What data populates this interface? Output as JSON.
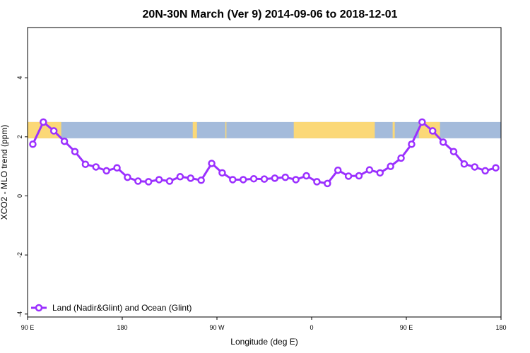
{
  "chart_data": {
    "type": "line",
    "title": "20N-30N March (Ver 9)   2014-09-06 to 2018-12-01",
    "xlabel": "Longitude (deg E)",
    "ylabel": "XCO2 - MLO trend (ppm)",
    "xlim": [
      90,
      540
    ],
    "ylim": [
      -4.1,
      5.7
    ],
    "x_ticks": [
      {
        "value": 90,
        "label": "90 E"
      },
      {
        "value": 180,
        "label": "180"
      },
      {
        "value": 270,
        "label": "90 W"
      },
      {
        "value": 360,
        "label": "0"
      },
      {
        "value": 450,
        "label": "90 E"
      },
      {
        "value": 540,
        "label": "180"
      }
    ],
    "y_ticks": [
      {
        "value": -4,
        "label": "-4"
      },
      {
        "value": -2,
        "label": "-2"
      },
      {
        "value": 0,
        "label": "0"
      },
      {
        "value": 2,
        "label": "2"
      },
      {
        "value": 4,
        "label": "4"
      }
    ],
    "map_strip": {
      "y_range": [
        1.95,
        2.5
      ],
      "ocean_color": "#a4bbdb",
      "land_color": "#fbd877",
      "land_segments": [
        [
          90,
          122
        ],
        [
          247,
          251
        ],
        [
          278,
          279
        ],
        [
          343,
          420
        ],
        [
          437,
          439
        ],
        [
          462,
          482
        ]
      ]
    },
    "series": [
      {
        "name": "Land (Nadir&Glint) and Ocean (Glint)",
        "color": "#9b30ff",
        "x": [
          95,
          105,
          115,
          125,
          135,
          145,
          155,
          165,
          175,
          185,
          195,
          205,
          215,
          225,
          235,
          245,
          255,
          265,
          275,
          285,
          295,
          305,
          315,
          325,
          335,
          345,
          355,
          365,
          375,
          385,
          395,
          405,
          415,
          425,
          435,
          445,
          455,
          465,
          475,
          485,
          495,
          505,
          515,
          525,
          535
        ],
        "y": [
          1.75,
          2.5,
          2.2,
          1.85,
          1.5,
          1.07,
          0.98,
          0.85,
          0.95,
          0.63,
          0.5,
          0.48,
          0.55,
          0.5,
          0.65,
          0.6,
          0.53,
          1.1,
          0.78,
          0.55,
          0.55,
          0.58,
          0.57,
          0.6,
          0.63,
          0.55,
          0.68,
          0.48,
          0.42,
          0.87,
          0.67,
          0.68,
          0.88,
          0.78,
          1.0,
          1.28,
          1.75,
          2.5,
          2.2,
          1.82,
          1.5,
          1.08,
          0.98,
          0.85,
          0.95
        ]
      }
    ],
    "legend_position": "bottom-left",
    "grid": false
  }
}
